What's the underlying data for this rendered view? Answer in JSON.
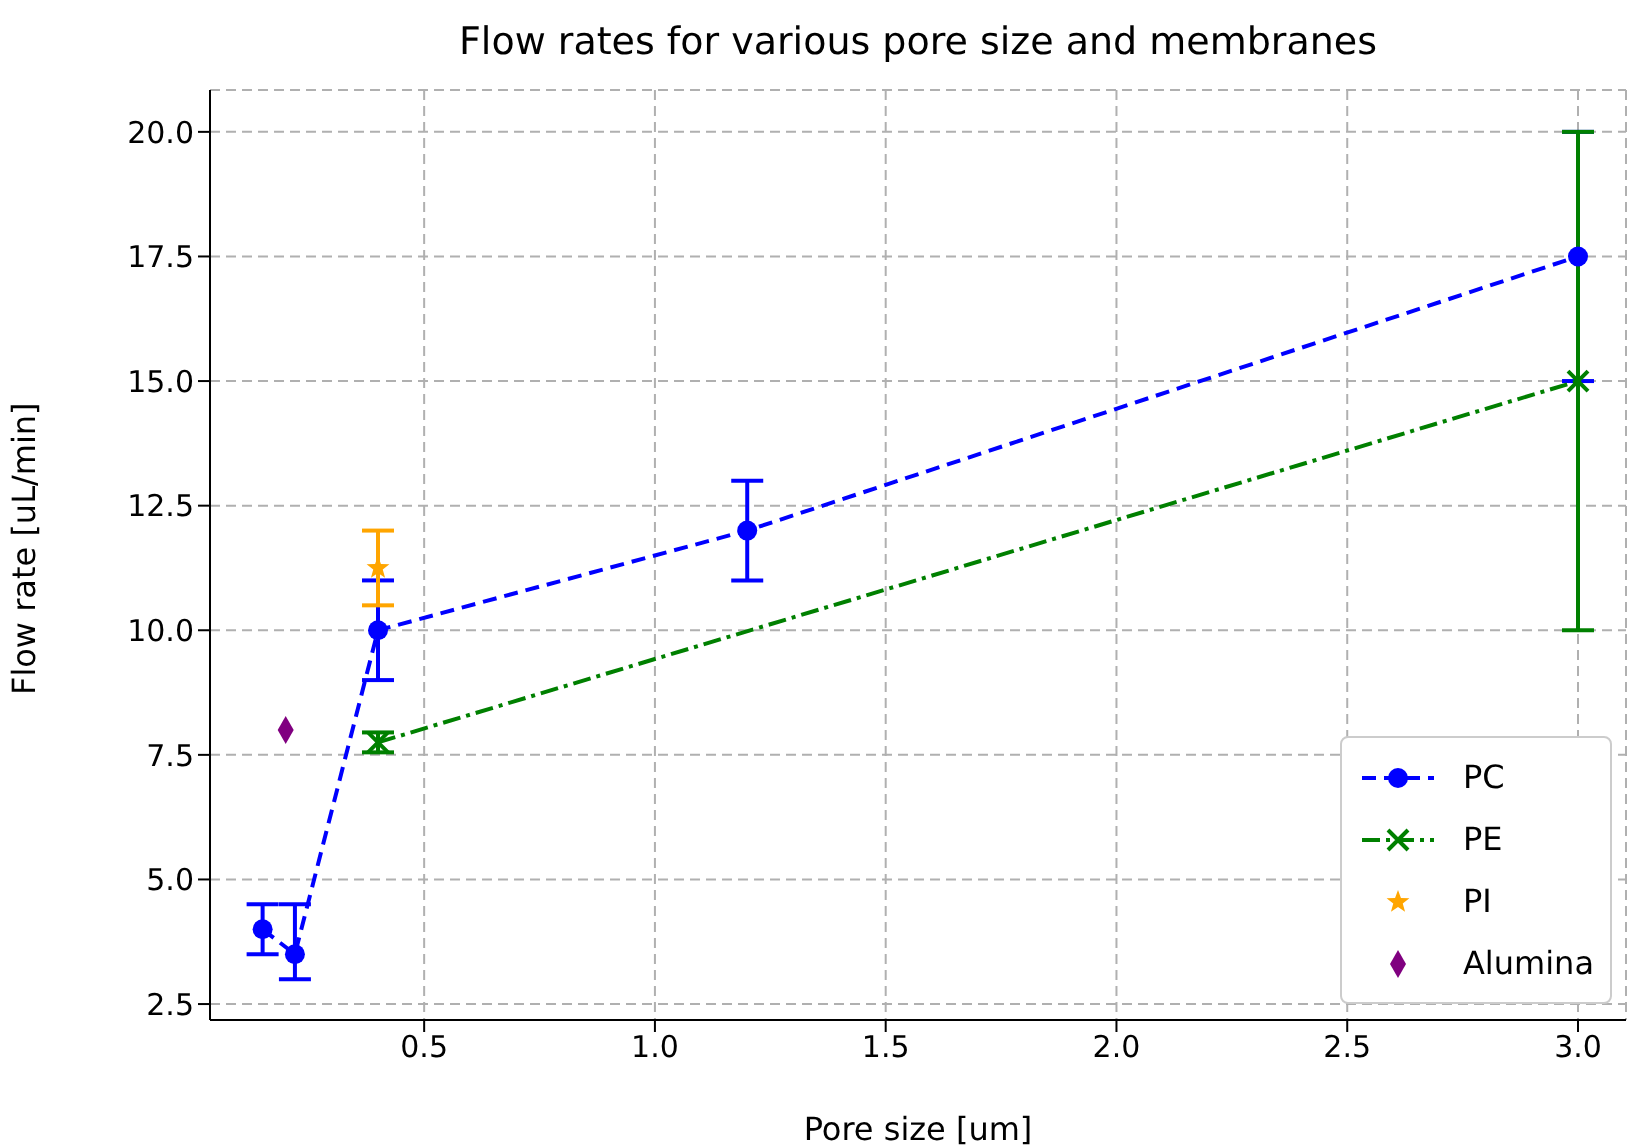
{
  "chart_data": {
    "type": "line",
    "title": "Flow rates for various pore size and membranes",
    "xlabel": "Pore size [um]",
    "ylabel": "Flow rate [uL/min]",
    "series": [
      {
        "name": "PC",
        "color": "#0000ff",
        "marker": "circle",
        "line_style": "dashed",
        "x": [
          0.15,
          0.22,
          0.4,
          1.2,
          3.0
        ],
        "values": [
          4,
          3.5,
          10,
          12,
          17.5
        ],
        "errors": [
          0.5,
          [
            3.0,
            4.5
          ],
          1,
          1,
          2.5
        ]
      },
      {
        "name": "PE",
        "color": "#008000",
        "marker": "cross",
        "line_style": "dashdot",
        "x": [
          0.4,
          3.0
        ],
        "values": [
          7.75,
          15
        ],
        "errors": [
          0.2,
          5
        ]
      },
      {
        "name": "PI",
        "type": "scatter",
        "color": "#ffa500",
        "marker": "star",
        "x": [
          0.4
        ],
        "values": [
          11.25
        ],
        "errors": [
          0.75
        ]
      },
      {
        "name": "Alumina",
        "type": "scatter",
        "color": "#800080",
        "marker": "diamond",
        "x": [
          0.2
        ],
        "values": [
          8
        ]
      }
    ],
    "xlim": [
      0.036,
      3.104
    ],
    "xticks": [
      {
        "value": 0.5,
        "label": "0.5"
      },
      {
        "value": 1.0,
        "label": "1.0"
      },
      {
        "value": 1.5,
        "label": "1.5"
      },
      {
        "value": 2.0,
        "label": "2.0"
      },
      {
        "value": 2.5,
        "label": "2.5"
      },
      {
        "value": 3.0,
        "label": "3.0"
      }
    ],
    "ylim": [
      2.18,
      20.84
    ],
    "yticks": [
      {
        "value": 2.5,
        "label": "2.5"
      },
      {
        "value": 5,
        "label": "5.0"
      },
      {
        "value": 7.5,
        "label": "7.5"
      },
      {
        "value": 10,
        "label": "10.0"
      },
      {
        "value": 12.5,
        "label": "12.5"
      },
      {
        "value": 15,
        "label": "15.0"
      },
      {
        "value": 17.5,
        "label": "17.5"
      },
      {
        "value": 20,
        "label": "20.0"
      }
    ],
    "grid": true,
    "legend": "bottom right"
  }
}
